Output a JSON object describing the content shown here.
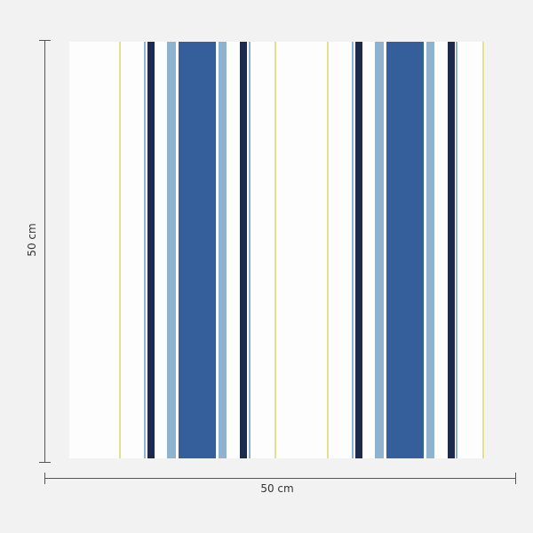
{
  "dimensions": {
    "height_label": "50 cm",
    "width_label": "50 cm"
  },
  "colors": {
    "background": "#f2f2f2",
    "panel": "#fdfdfd",
    "yellow": "#e6e08a",
    "light_blue": "#8fb2cf",
    "navy": "#1c2b4d",
    "blue": "#355f9a"
  }
}
